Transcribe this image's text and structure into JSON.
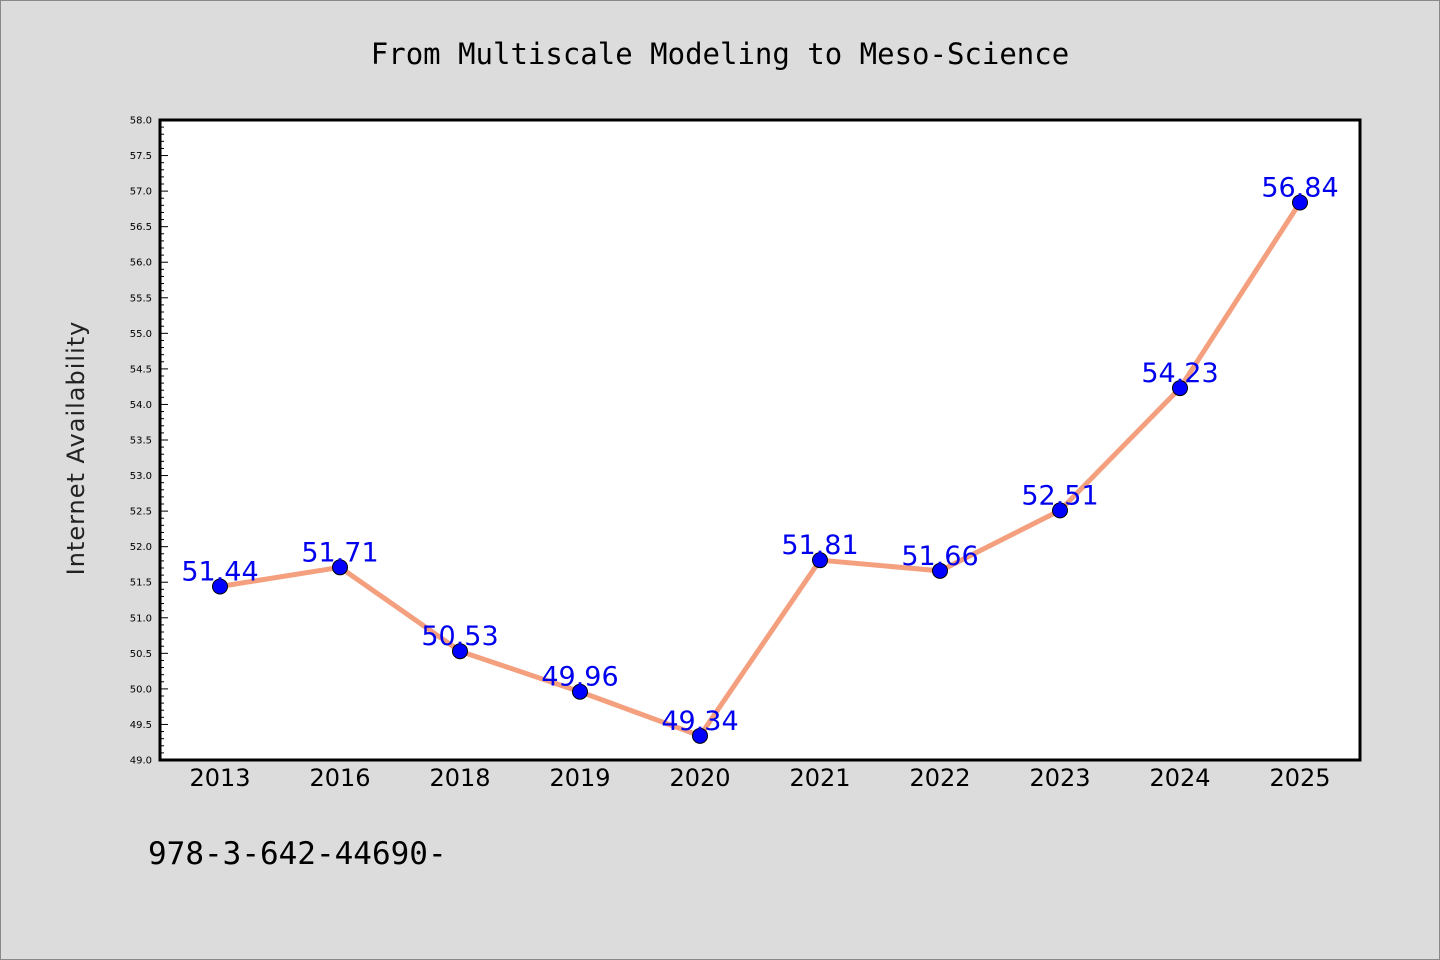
{
  "chart_data": {
    "type": "line",
    "title": "From Multiscale Modeling to Meso-Science",
    "xlabel": "",
    "ylabel": "Internet Availability",
    "categories": [
      "2013",
      "2016",
      "2018",
      "2019",
      "2020",
      "2021",
      "2022",
      "2023",
      "2024",
      "2025"
    ],
    "values": [
      51.44,
      51.71,
      50.53,
      49.96,
      49.34,
      51.81,
      51.66,
      52.51,
      54.23,
      56.84
    ],
    "data_labels": [
      "51.44",
      "51.71",
      "50.53",
      "49.96",
      "49.34",
      "51.81",
      "51.66",
      "52.51",
      "54.23",
      "56.84"
    ],
    "ylim": [
      49.0,
      58.0
    ],
    "ytick_labels": [
      "49.0",
      "49.5",
      "50.0",
      "50.5",
      "51.0",
      "51.5",
      "52.0",
      "52.5",
      "53.0",
      "53.5",
      "54.0",
      "54.5",
      "55.0",
      "55.5",
      "56.0",
      "56.5",
      "57.0",
      "57.5",
      "58.0"
    ],
    "grid": false,
    "legend": "none",
    "line_color": "#f4a07e",
    "marker_color": "#0000ff",
    "label_color": "#0000ee"
  },
  "footer_text": "978-3-642-44690-"
}
